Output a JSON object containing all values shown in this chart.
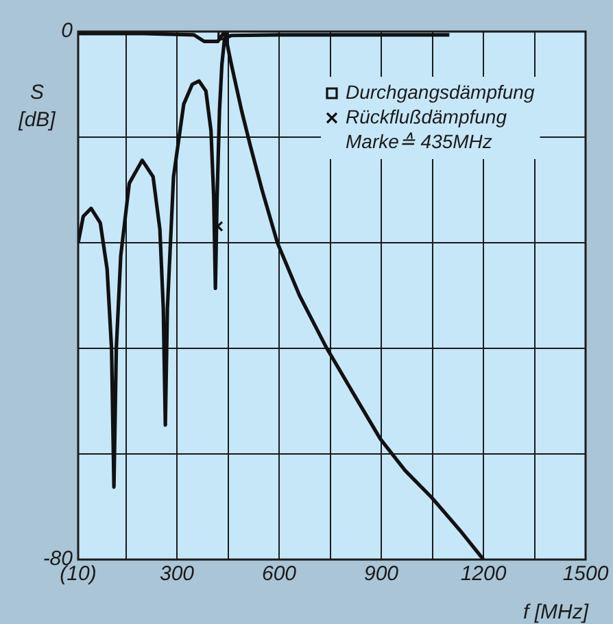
{
  "chart_data": {
    "type": "line",
    "xlabel": "f [MHz]",
    "ylabel": "S [dB]",
    "annotations": [
      "Marke≙ 435MHz"
    ],
    "xlim": [
      10,
      1500
    ],
    "xticks": [
      {
        "value": 10,
        "label": "(10)"
      },
      {
        "value": 150,
        "label": null
      },
      300,
      {
        "value": 450,
        "label": null
      },
      600,
      {
        "value": 750,
        "label": null
      },
      900,
      {
        "value": 1050,
        "label": null
      },
      1200,
      {
        "value": 1350,
        "label": null
      },
      1500
    ],
    "ylim": [
      -80,
      0
    ],
    "yticks": [
      -80,
      {
        "value": -64,
        "label": null
      },
      {
        "value": -48,
        "label": null
      },
      {
        "value": -32,
        "label": null
      },
      {
        "value": -16,
        "label": null
      },
      0
    ],
    "grid": true,
    "legend": "top right",
    "marker": "none",
    "line_style": "solid",
    "series": [
      {
        "color": "#111111",
        "x": [
          10,
          200,
          350,
          380,
          420,
          440,
          460,
          490,
          516,
          550,
          595,
          660,
          738,
          820,
          897,
          970,
          1048,
          1130,
          1200
        ],
        "values": [
          -0.3,
          -0.3,
          -0.5,
          -1.5,
          -1.5,
          0,
          -5,
          -12,
          -17.4,
          -24,
          -32,
          -40,
          -47.8,
          -55,
          -61.7,
          -66.5,
          -70.6,
          -75.5,
          -80
        ]
      },
      {
        "color": "#111111",
        "x": [
          10,
          25,
          48,
          75,
          95,
          108,
          115,
          122,
          135,
          160,
          198,
          230,
          250,
          260,
          266,
          272,
          290,
          320,
          345,
          365,
          385,
          400,
          408,
          413,
          418,
          425,
          432,
          440,
          460,
          600,
          900,
          1100
        ],
        "values": [
          -32,
          -28,
          -26.8,
          -29,
          -36,
          -48,
          -69,
          -48,
          -34,
          -23,
          -19.5,
          -22,
          -30,
          -42,
          -59.6,
          -42,
          -22,
          -11,
          -8,
          -7.5,
          -9,
          -15,
          -25,
          -38.9,
          -25,
          -12,
          -5,
          -1,
          -0.6,
          -0.5,
          -0.5,
          -0.5
        ]
      },
      {
        "type": "scatter",
        "name": "Durchgangsdämpfung",
        "marker": "square",
        "color": "#111111",
        "x": [
          435
        ],
        "values": [
          -0.5
        ]
      },
      {
        "type": "scatter",
        "name": "Rückflußdämpfung",
        "marker": "cross",
        "color": "#111111",
        "x": [
          420
        ],
        "values": [
          -29.5
        ]
      }
    ]
  }
}
